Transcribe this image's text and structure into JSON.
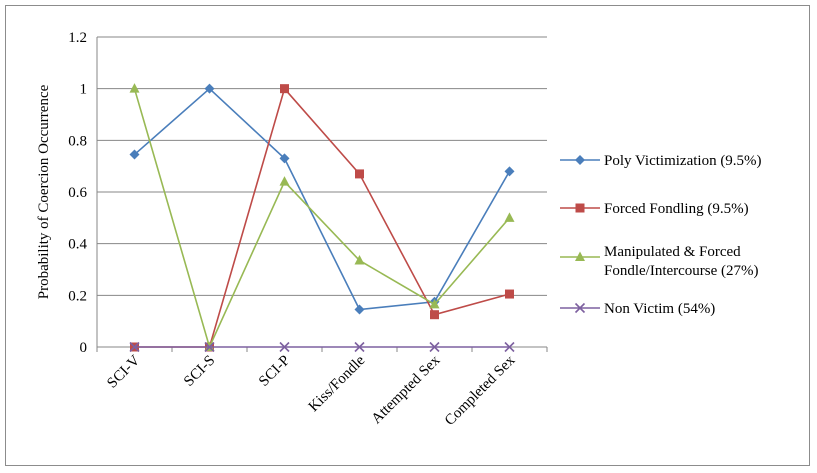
{
  "chart_data": {
    "type": "line",
    "title": "",
    "xlabel": "",
    "ylabel": "Probability of Coercion Occurrence",
    "ylim": [
      0,
      1.2
    ],
    "yticks": [
      "0",
      "0.2",
      "0.4",
      "0.6",
      "0.8",
      "1",
      "1.2"
    ],
    "grid": true,
    "legend_position": "right",
    "categories": [
      "SCI-V",
      "SCI-S",
      "SCI-P",
      "Kiss/Fondle",
      "Attempted Sex",
      "Completed Sex"
    ],
    "series": [
      {
        "name_lines": [
          "Poly Victimization (9.5%)"
        ],
        "color": "#4a7ebb",
        "marker": "diamond",
        "values": [
          0.745,
          1.0,
          0.73,
          0.145,
          0.175,
          0.68
        ]
      },
      {
        "name_lines": [
          "Forced Fondling (9.5%)"
        ],
        "color": "#be4b48",
        "marker": "square",
        "values": [
          0.0,
          0.0,
          1.0,
          0.67,
          0.125,
          0.205
        ]
      },
      {
        "name_lines": [
          "Manipulated & Forced",
          "Fondle/Intercourse (27%)"
        ],
        "color": "#98b954",
        "marker": "triangle",
        "values": [
          1.0,
          0.0,
          0.64,
          0.335,
          0.165,
          0.5
        ]
      },
      {
        "name_lines": [
          "Non Victim (54%)"
        ],
        "color": "#7d60a0",
        "marker": "x",
        "values": [
          0.0,
          0.0,
          0.0,
          0.0,
          0.0,
          0.0
        ]
      }
    ]
  }
}
